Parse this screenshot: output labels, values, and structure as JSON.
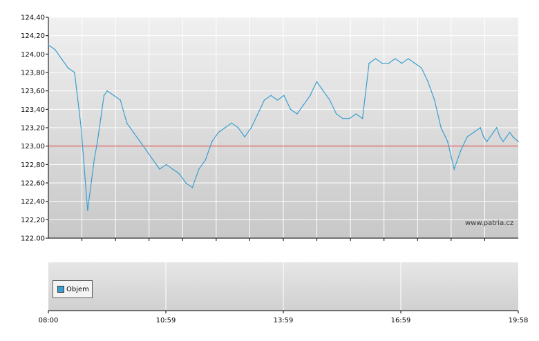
{
  "chart_data": [
    {
      "type": "line",
      "title": "",
      "xlabel": "",
      "ylabel": "",
      "ylim": [
        122.0,
        124.4
      ],
      "y_ticks": [
        "124,40",
        "124,20",
        "124,00",
        "123,80",
        "123,60",
        "123,40",
        "123,20",
        "123,00",
        "122,80",
        "122,60",
        "122,40",
        "122,20",
        "122.00"
      ],
      "reference_line": {
        "value": 123.0,
        "color": "#e03030"
      },
      "grid": true,
      "line_color": "#3a9fd0",
      "series": [
        {
          "x": [
            "08:00",
            "08:10",
            "08:20",
            "08:30",
            "08:40",
            "08:50",
            "09:00",
            "09:10",
            "09:15",
            "09:20",
            "09:25",
            "09:30",
            "09:40",
            "09:50",
            "10:00",
            "10:10",
            "10:20",
            "10:30",
            "10:40",
            "10:50",
            "11:00",
            "11:10",
            "11:20",
            "11:30",
            "11:40",
            "11:50",
            "12:00",
            "12:10",
            "12:20",
            "12:30",
            "12:40",
            "12:50",
            "13:00",
            "13:10",
            "13:20",
            "13:30",
            "13:40",
            "13:50",
            "14:00",
            "14:10",
            "14:20",
            "14:30",
            "14:40",
            "14:50",
            "15:00",
            "15:10",
            "15:20",
            "15:30",
            "15:40",
            "15:50",
            "16:00",
            "16:10",
            "16:20",
            "16:30",
            "16:40",
            "16:50",
            "17:00",
            "17:10",
            "17:20",
            "17:30",
            "17:40",
            "17:50",
            "18:00",
            "18:10",
            "18:20",
            "18:30",
            "18:40",
            "18:50",
            "19:00",
            "19:05",
            "19:10",
            "19:15",
            "19:20",
            "19:25",
            "19:30",
            "19:35",
            "19:40",
            "19:45",
            "19:50",
            "19:58"
          ],
          "values": [
            124.1,
            124.05,
            123.95,
            123.85,
            123.8,
            123.2,
            122.3,
            122.85,
            123.05,
            123.3,
            123.55,
            123.6,
            123.55,
            123.5,
            123.25,
            123.15,
            123.05,
            122.95,
            122.85,
            122.75,
            122.8,
            122.75,
            122.7,
            122.6,
            122.55,
            122.75,
            122.85,
            123.05,
            123.15,
            123.2,
            123.25,
            123.2,
            123.1,
            123.2,
            123.35,
            123.5,
            123.55,
            123.5,
            123.55,
            123.4,
            123.35,
            123.45,
            123.55,
            123.7,
            123.6,
            123.5,
            123.35,
            123.3,
            123.3,
            123.35,
            123.3,
            123.9,
            123.95,
            123.9,
            123.9,
            123.95,
            123.9,
            123.95,
            123.9,
            123.85,
            123.7,
            123.5,
            123.2,
            123.05,
            122.75,
            122.95,
            123.1,
            123.15,
            123.2,
            123.1,
            123.05,
            123.1,
            123.15,
            123.2,
            123.1,
            123.05,
            123.1,
            123.15,
            123.1,
            123.05
          ]
        }
      ]
    },
    {
      "type": "bar",
      "legend": [
        "Objem"
      ],
      "x_ticks": [
        "08:00",
        "10:59",
        "13:59",
        "16:59",
        "19:58"
      ],
      "series": []
    }
  ],
  "watermark": "www.patria.cz"
}
